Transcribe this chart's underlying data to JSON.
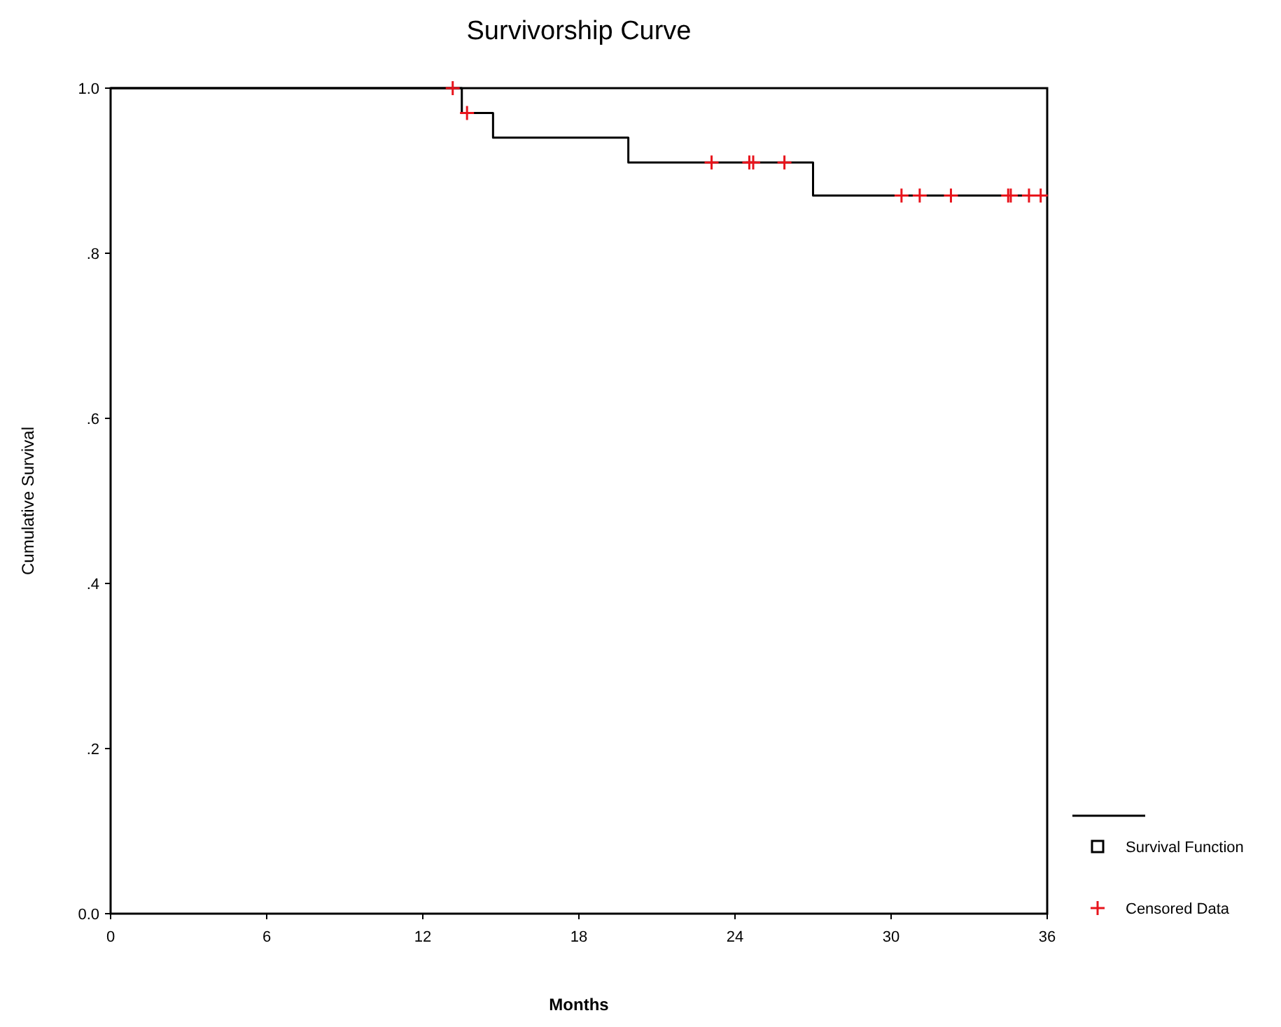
{
  "chart_data": {
    "type": "step",
    "title": "Survivorship Curve",
    "xlabel": "Months",
    "ylabel": "Cumulative Survival",
    "xlim": [
      0,
      36
    ],
    "xticks": [
      0,
      6,
      12,
      18,
      24,
      30,
      36
    ],
    "ylim": [
      0,
      1
    ],
    "yticks": [
      {
        "value": 0,
        "label": "0.0"
      },
      {
        "value": 0.2,
        "label": ".2"
      },
      {
        "value": 0.4,
        "label": ".4"
      },
      {
        "value": 0.6,
        "label": ".6"
      },
      {
        "value": 0.8,
        "label": ".8"
      },
      {
        "value": 1,
        "label": "1.0"
      }
    ],
    "grid": false,
    "legend": "bottom right",
    "series": [
      {
        "name": "Survival Function",
        "color": "#000000",
        "line_style": "solid",
        "x": [
          0,
          13.5,
          14.7,
          19.9,
          27.0,
          36
        ],
        "values": [
          1,
          0.97,
          0.94,
          0.91,
          0.87,
          0.87
        ]
      },
      {
        "name": "Censored Data",
        "type": "scatter",
        "color": "#e8141c",
        "marker": "cross",
        "x": [
          13.15,
          13.7,
          23.1,
          24.55,
          24.7,
          25.9,
          30.4,
          31.1,
          32.3,
          34.5,
          34.6,
          35.3,
          35.75
        ],
        "values": [
          1,
          0.97,
          0.91,
          0.91,
          0.91,
          0.91,
          0.87,
          0.87,
          0.87,
          0.87,
          0.87,
          0.87,
          0.87
        ]
      }
    ]
  }
}
